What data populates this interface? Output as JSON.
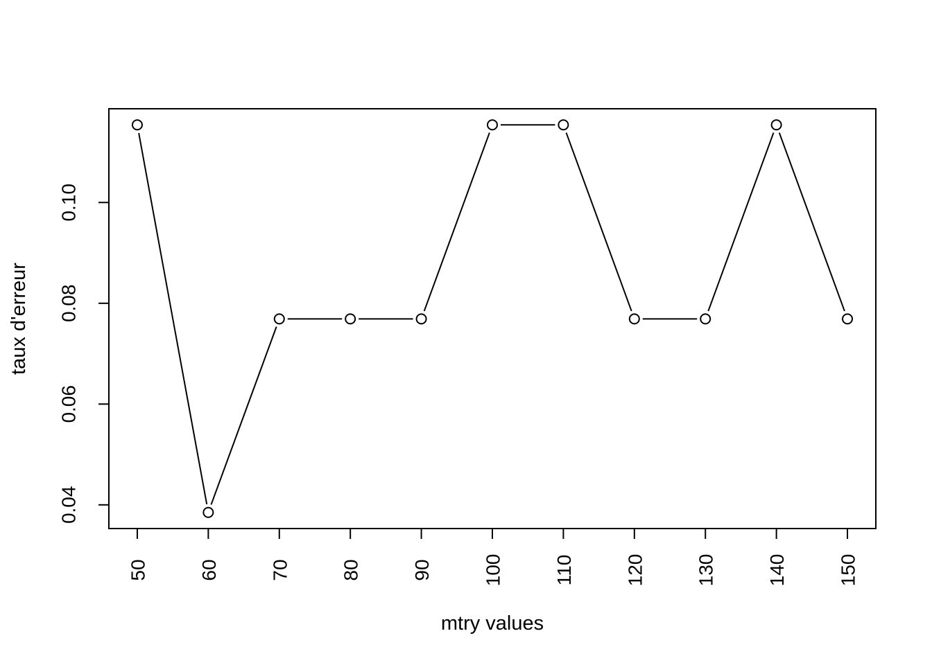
{
  "chart_data": {
    "type": "line",
    "title": "",
    "xlabel": "mtry values",
    "ylabel": "taux d'erreur",
    "x": [
      50,
      60,
      70,
      80,
      90,
      100,
      110,
      120,
      130,
      140,
      150
    ],
    "series": [
      {
        "values": [
          0.1154,
          0.0385,
          0.0769,
          0.0769,
          0.0769,
          0.1154,
          0.1154,
          0.0769,
          0.0769,
          0.1154,
          0.0769
        ]
      }
    ],
    "xticks": [
      "50",
      "60",
      "70",
      "80",
      "90",
      "100",
      "110",
      "120",
      "130",
      "140",
      "150"
    ],
    "yticks": [
      "0.04",
      "0.06",
      "0.08",
      "0.10"
    ],
    "ytick_values": [
      0.04,
      0.06,
      0.08,
      0.1
    ],
    "xlim": [
      46,
      154
    ],
    "ylim": [
      0.0353,
      0.1186
    ],
    "grid": false,
    "legend": "none",
    "marker": "open-circle",
    "line_color": "#000000"
  }
}
